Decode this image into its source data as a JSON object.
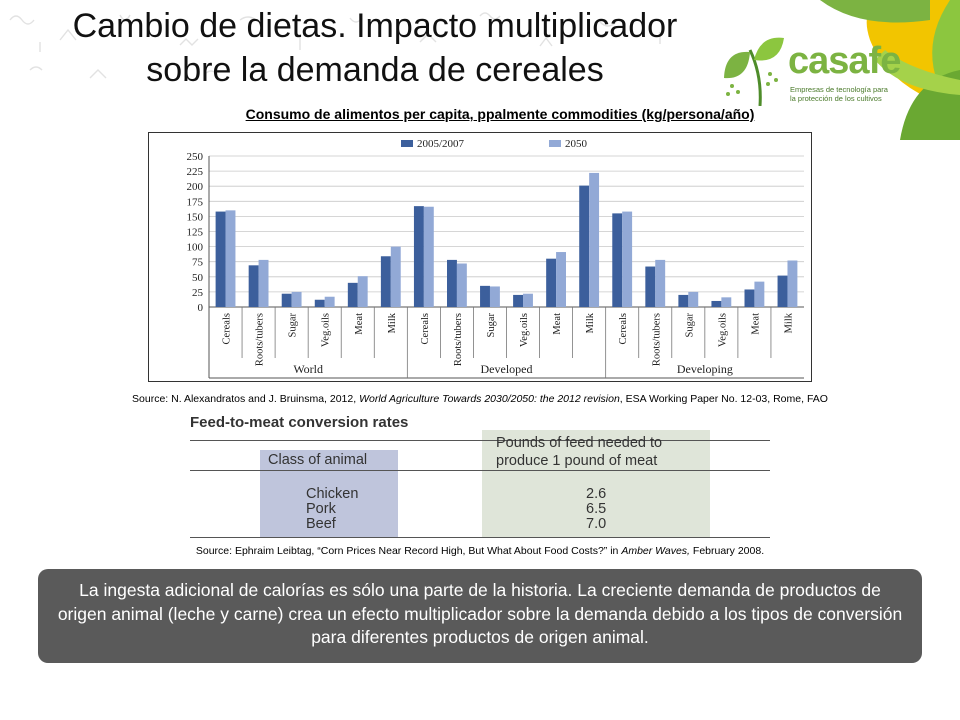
{
  "slide": {
    "title_line1": "Cambio de dietas. Impacto multiplicador",
    "title_line2": "sobre la demanda de cereales",
    "logo_name": "casafe",
    "logo_tagline_1": "Empresas de tecnología para",
    "logo_tagline_2": "la protección de los cultivos",
    "chart_heading": "Consumo de alimentos per capita, ppalmente commodities (kg/persona/año)",
    "source1_prefix": "Source: N. Alexandratos and J. Bruinsma, 2012,",
    "source1_italic": "World Agriculture Towards 2030/2050: the 2012 revision",
    "source1_suffix": ", ESA Working Paper No. 12-03, Rome, FAO",
    "conversion": {
      "title": "Feed-to-meat conversion rates",
      "header_animal": "Class of animal",
      "header_feed_1": "Pounds of feed needed to",
      "header_feed_2": "produce 1 pound of meat",
      "rows": [
        {
          "animal": "Chicken",
          "feed": "2.6"
        },
        {
          "animal": "Pork",
          "feed": "6.5"
        },
        {
          "animal": "Beef",
          "feed": "7.0"
        }
      ]
    },
    "source2_prefix": "Source: Ephraim Leibtag, “Corn Prices Near Record High, But What About Food Costs?” in",
    "source2_italic": "Amber Waves,",
    "source2_suffix": "February 2008.",
    "note": "La ingesta adicional de calorías es sólo una parte de la historia. La creciente demanda de productos de origen animal (leche y carne) crea un efecto multiplicador sobre la demanda debido a los tipos de conversión para diferentes productos de origen animal."
  },
  "colors": {
    "series_2005": "#3c5f9c",
    "series_2050": "#92a9d6",
    "logo_green": "#7cb342",
    "note_bg": "#5a5a5a"
  },
  "chart_data": {
    "type": "bar",
    "groups": [
      "World",
      "Developed",
      "Developing"
    ],
    "categories": [
      "Cereals",
      "Roots/tubers",
      "Sugar",
      "Veg.oils",
      "Meat",
      "Milk"
    ],
    "series": [
      {
        "name": "2005/2007",
        "values": [
          [
            158,
            69,
            22,
            12,
            40,
            84
          ],
          [
            167,
            78,
            35,
            20,
            80,
            201
          ],
          [
            155,
            67,
            20,
            10,
            29,
            52
          ]
        ]
      },
      {
        "name": "2050",
        "values": [
          [
            160,
            78,
            25,
            17,
            51,
            100
          ],
          [
            166,
            72,
            34,
            22,
            91,
            222
          ],
          [
            158,
            78,
            25,
            16,
            42,
            77
          ]
        ]
      }
    ],
    "ylim": [
      0,
      250
    ],
    "yticks": [
      0,
      25,
      50,
      75,
      100,
      125,
      150,
      175,
      200,
      225,
      250
    ],
    "grid": true,
    "legend": "top-center"
  }
}
